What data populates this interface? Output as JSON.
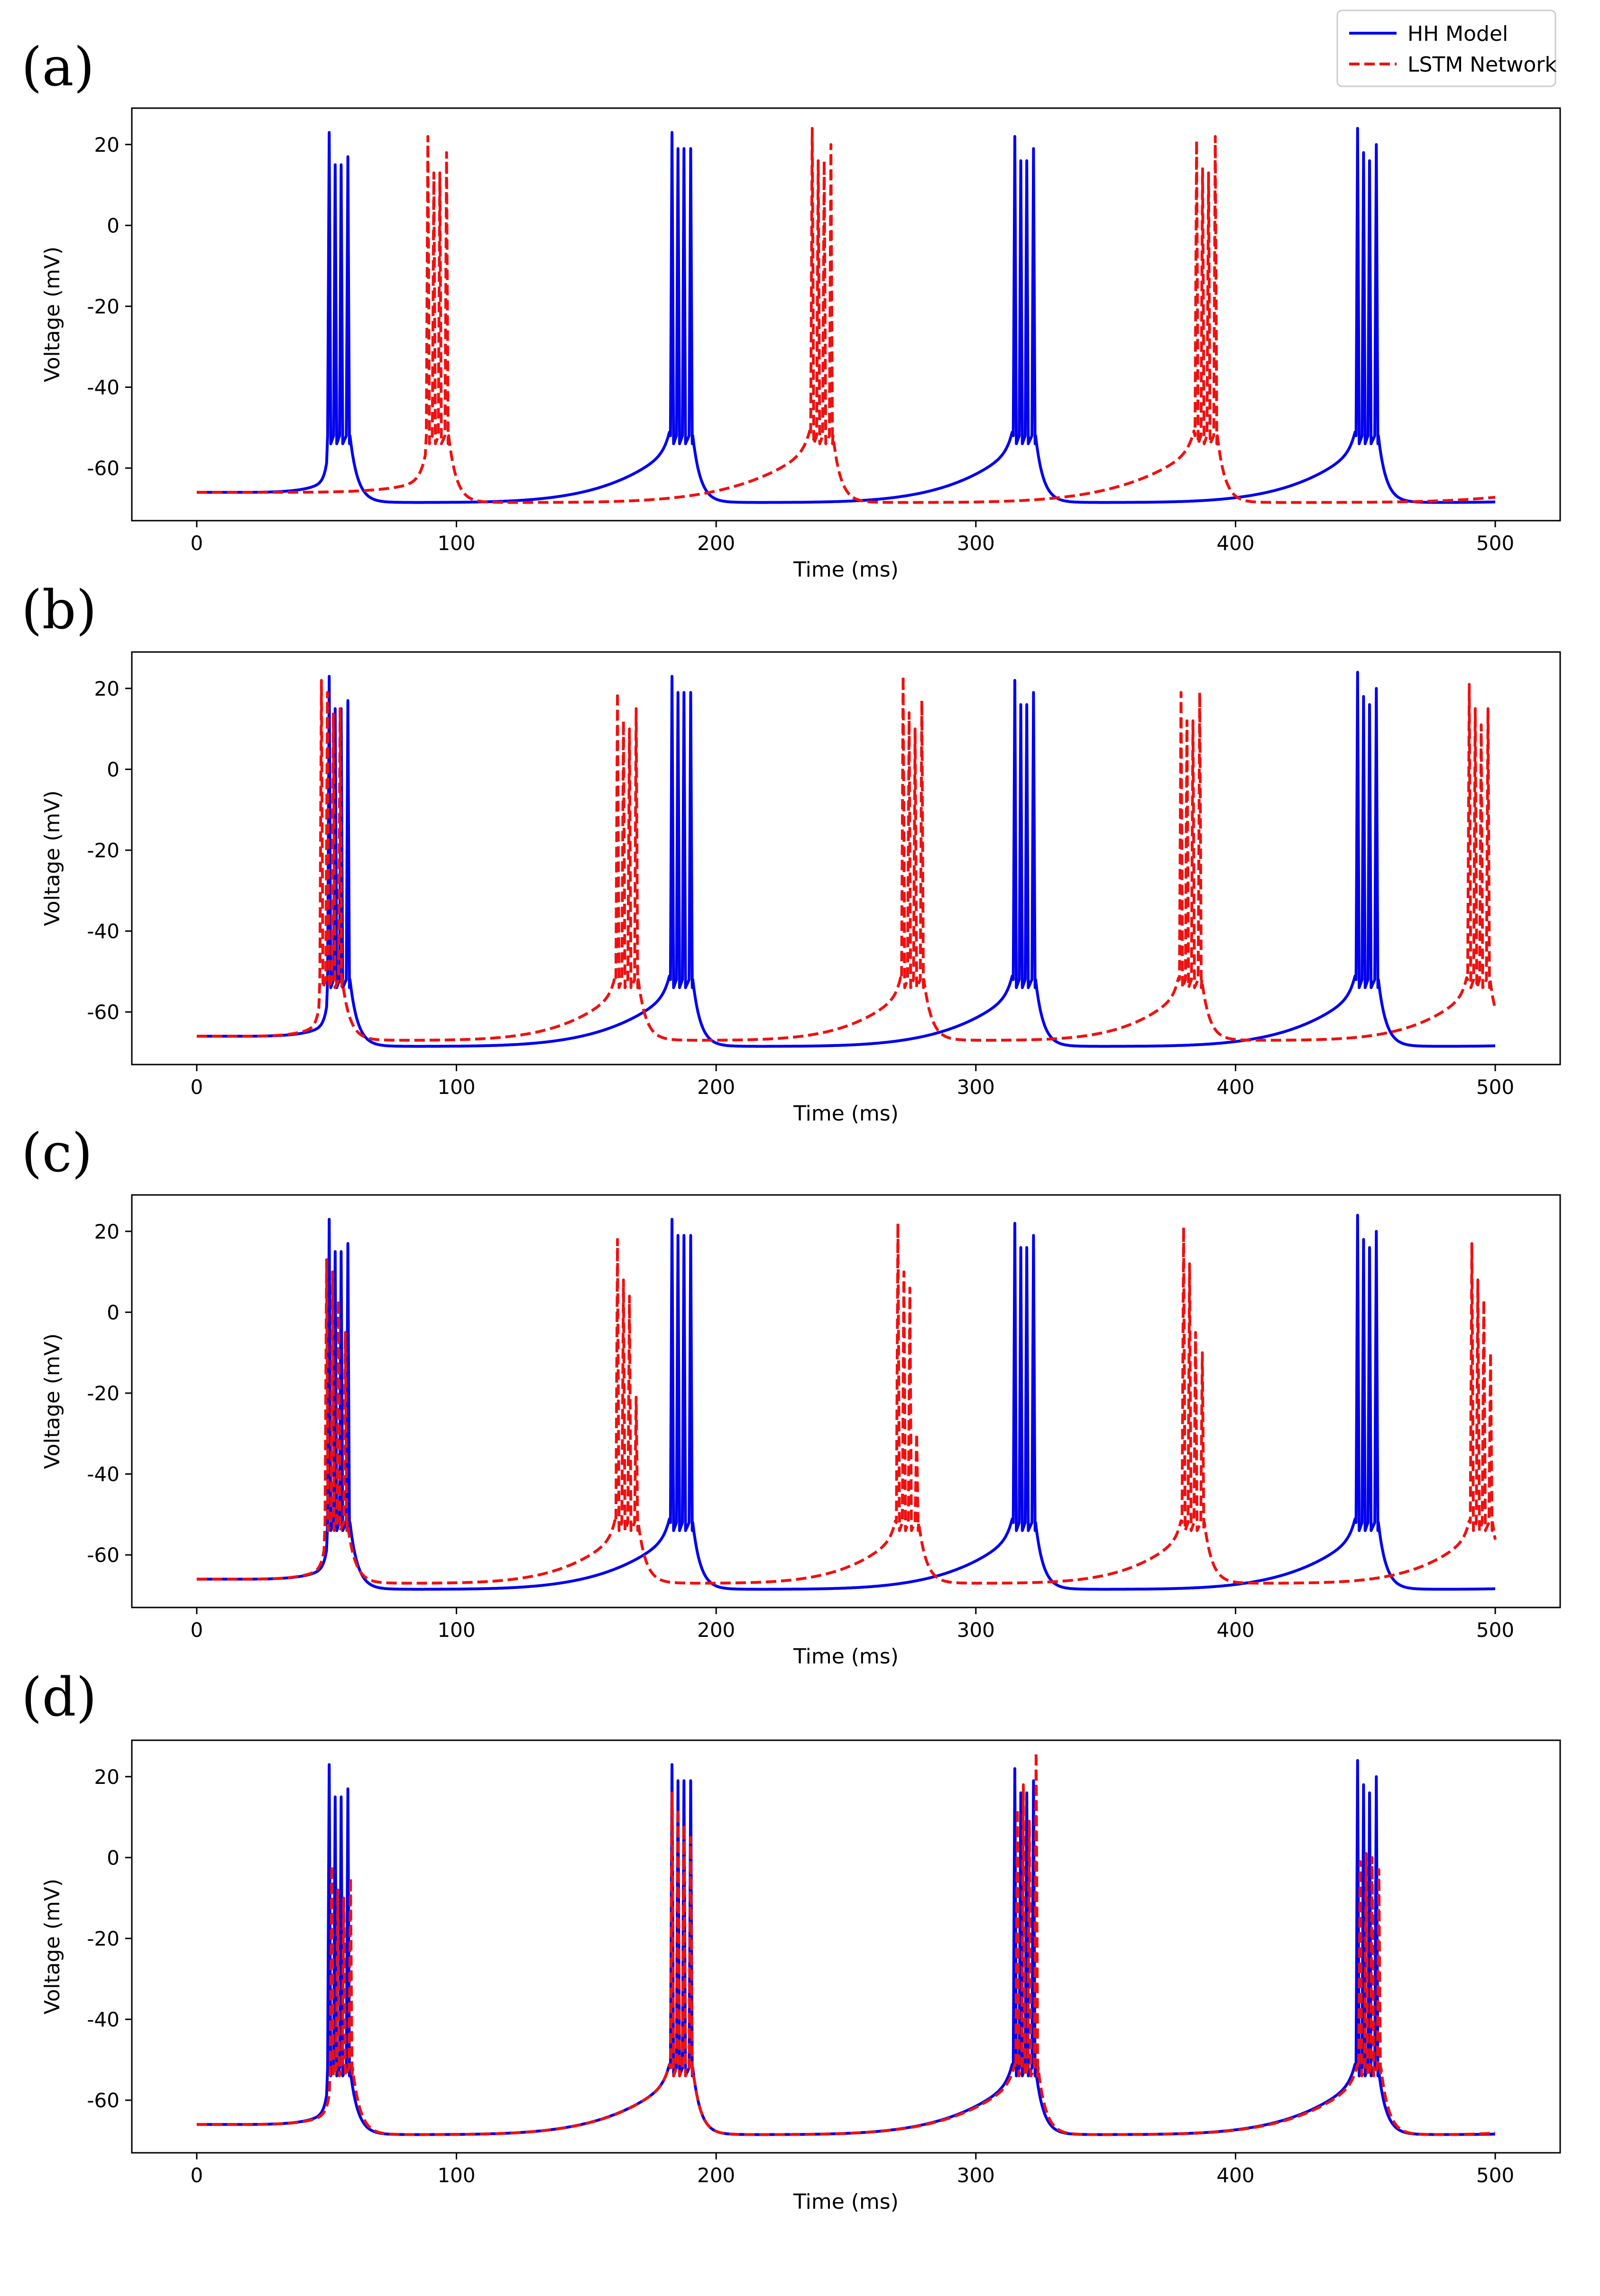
{
  "colors": {
    "hh": "#0000ee",
    "lstm": "#ee1111"
  },
  "legend": {
    "placement": "top-right",
    "entries": [
      {
        "label": "HH Model",
        "series": "hh",
        "style": "solid"
      },
      {
        "label": "LSTM Network",
        "series": "lstm",
        "style": "dashed"
      }
    ]
  },
  "chart_data": [
    {
      "type": "line",
      "panel_label": "(a)",
      "xlabel": "Time (ms)",
      "ylabel": "Voltage (mV)",
      "xlim": [
        -25,
        525
      ],
      "ylim": [
        -73,
        29
      ],
      "xticks": [
        0,
        100,
        200,
        300,
        400,
        500
      ],
      "yticks": [
        -60,
        -40,
        -20,
        0,
        20
      ],
      "grid": false,
      "series": [
        {
          "name": "HH Model",
          "key": "hh",
          "bursts": [
            {
              "t": 51,
              "peaks": [
                23,
                15,
                15,
                17
              ]
            },
            {
              "t": 183,
              "peaks": [
                23,
                19,
                19,
                19
              ]
            },
            {
              "t": 315,
              "peaks": [
                22,
                16,
                16,
                19
              ]
            },
            {
              "t": 447,
              "peaks": [
                24,
                18,
                16,
                20
              ]
            }
          ],
          "period": 132,
          "rest_start": -66,
          "trough": -68.5,
          "rest_end": -68,
          "end": 500
        },
        {
          "name": "LSTM Network",
          "key": "lstm",
          "bursts": [
            {
              "t": 89,
              "peaks": [
                22,
                13,
                13,
                18
              ]
            },
            {
              "t": 237,
              "peaks": [
                24,
                16,
                16,
                20
              ]
            },
            {
              "t": 385,
              "peaks": [
                21,
                14,
                13,
                22
              ]
            }
          ],
          "period": 148,
          "rest_start": -66,
          "trough": -68.5,
          "rest_end": -64,
          "end": 500
        }
      ]
    },
    {
      "type": "line",
      "panel_label": "(b)",
      "xlabel": "Time (ms)",
      "ylabel": "Voltage (mV)",
      "xlim": [
        -25,
        525
      ],
      "ylim": [
        -73,
        29
      ],
      "xticks": [
        0,
        100,
        200,
        300,
        400,
        500
      ],
      "yticks": [
        -60,
        -40,
        -20,
        0,
        20
      ],
      "grid": false,
      "series": [
        {
          "name": "HH Model",
          "key": "hh",
          "bursts": [
            {
              "t": 51,
              "peaks": [
                23,
                15,
                15,
                17
              ]
            },
            {
              "t": 183,
              "peaks": [
                23,
                19,
                19,
                19
              ]
            },
            {
              "t": 315,
              "peaks": [
                22,
                16,
                16,
                19
              ]
            },
            {
              "t": 447,
              "peaks": [
                24,
                18,
                16,
                20
              ]
            }
          ],
          "period": 132,
          "rest_start": -66,
          "trough": -68.5,
          "rest_end": -68,
          "end": 500
        },
        {
          "name": "LSTM Network",
          "key": "lstm",
          "bursts": [
            {
              "t": 48,
              "peaks": [
                22,
                19,
                14,
                15
              ]
            },
            {
              "t": 162,
              "peaks": [
                19,
                12,
                10,
                15
              ]
            },
            {
              "t": 272,
              "peaks": [
                23,
                14,
                10,
                17
              ]
            },
            {
              "t": 379,
              "peaks": [
                19,
                12,
                12,
                19
              ]
            },
            {
              "t": 490,
              "peaks": [
                21,
                15,
                11,
                15
              ]
            }
          ],
          "period": 112,
          "rest_start": -66,
          "trough": -67,
          "rest_end": -62,
          "end": 500
        }
      ]
    },
    {
      "type": "line",
      "panel_label": "(c)",
      "xlabel": "Time (ms)",
      "ylabel": "Voltage (mV)",
      "xlim": [
        -25,
        525
      ],
      "ylim": [
        -73,
        29
      ],
      "xticks": [
        0,
        100,
        200,
        300,
        400,
        500
      ],
      "yticks": [
        -60,
        -40,
        -20,
        0,
        20
      ],
      "grid": false,
      "series": [
        {
          "name": "HH Model",
          "key": "hh",
          "bursts": [
            {
              "t": 51,
              "peaks": [
                23,
                15,
                15,
                17
              ]
            },
            {
              "t": 183,
              "peaks": [
                23,
                19,
                19,
                19
              ]
            },
            {
              "t": 315,
              "peaks": [
                22,
                16,
                16,
                19
              ]
            },
            {
              "t": 447,
              "peaks": [
                24,
                18,
                16,
                20
              ]
            }
          ],
          "period": 132,
          "rest_start": -66,
          "trough": -68.5,
          "rest_end": -68,
          "end": 500
        },
        {
          "name": "LSTM Network",
          "key": "lstm",
          "bursts": [
            {
              "t": 50,
              "peaks": [
                13,
                10,
                3,
                -5
              ]
            },
            {
              "t": 162,
              "peaks": [
                18,
                8,
                4,
                -21
              ]
            },
            {
              "t": 270,
              "peaks": [
                22,
                10,
                6,
                -30
              ]
            },
            {
              "t": 380,
              "peaks": [
                21,
                12,
                -5,
                -10
              ]
            },
            {
              "t": 491,
              "peaks": [
                17,
                8,
                3,
                -10
              ]
            }
          ],
          "period": 110,
          "rest_start": -66,
          "trough": -67,
          "rest_end": -55,
          "end": 500
        }
      ]
    },
    {
      "type": "line",
      "panel_label": "(d)",
      "xlabel": "Time (ms)",
      "ylabel": "Voltage (mV)",
      "xlim": [
        -25,
        525
      ],
      "ylim": [
        -73,
        29
      ],
      "xticks": [
        0,
        100,
        200,
        300,
        400,
        500
      ],
      "yticks": [
        -60,
        -40,
        -20,
        0,
        20
      ],
      "grid": false,
      "series": [
        {
          "name": "HH Model",
          "key": "hh",
          "bursts": [
            {
              "t": 51,
              "peaks": [
                23,
                15,
                15,
                17
              ]
            },
            {
              "t": 183,
              "peaks": [
                23,
                19,
                19,
                19
              ]
            },
            {
              "t": 315,
              "peaks": [
                22,
                16,
                16,
                19
              ]
            },
            {
              "t": 447,
              "peaks": [
                24,
                18,
                16,
                20
              ]
            }
          ],
          "period": 132,
          "rest_start": -66,
          "trough": -68.5,
          "rest_end": -68,
          "end": 500
        },
        {
          "name": "LSTM Network",
          "key": "lstm",
          "bursts": [
            {
              "t": 52,
              "peaks": [
                -2,
                -8,
                -10,
                -5
              ]
            },
            {
              "t": 183,
              "peaks": [
                16,
                12,
                8,
                5
              ]
            },
            {
              "t": 316,
              "peaks": [
                12,
                18,
                9,
                26
              ]
            },
            {
              "t": 448,
              "peaks": [
                -1,
                1,
                0,
                -3
              ]
            }
          ],
          "period": 132,
          "rest_start": -66,
          "trough": -68.5,
          "rest_end": -67,
          "end": 500
        }
      ]
    }
  ]
}
